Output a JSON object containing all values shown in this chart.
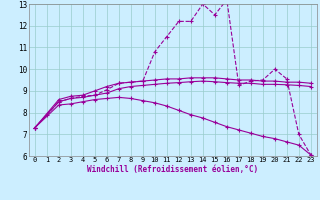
{
  "bg_color": "#cceeff",
  "line_color": "#990099",
  "grid_color": "#99cccc",
  "xlim": [
    -0.5,
    23.5
  ],
  "ylim": [
    6,
    13
  ],
  "xticks": [
    0,
    1,
    2,
    3,
    4,
    5,
    6,
    7,
    8,
    9,
    10,
    11,
    12,
    13,
    14,
    15,
    16,
    17,
    18,
    19,
    20,
    21,
    22,
    23
  ],
  "yticks": [
    6,
    7,
    8,
    9,
    10,
    11,
    12,
    13
  ],
  "xlabel": "Windchill (Refroidissement éolien,°C)",
  "line1_x": [
    0,
    1,
    2,
    3,
    4,
    5,
    6,
    7,
    8,
    9,
    10,
    11,
    12,
    13,
    14,
    15,
    16,
    17,
    18,
    19,
    20,
    21,
    22,
    23
  ],
  "line1_y": [
    7.3,
    7.9,
    8.5,
    8.65,
    8.75,
    8.8,
    9.05,
    9.35,
    9.4,
    9.45,
    10.8,
    11.5,
    12.2,
    12.2,
    13.0,
    12.5,
    13.2,
    9.25,
    9.45,
    9.5,
    10.0,
    9.55,
    7.0,
    6.05
  ],
  "line2_x": [
    0,
    2,
    3,
    4,
    5,
    6,
    7,
    8,
    9,
    10,
    11,
    12,
    13,
    14,
    15,
    16,
    17,
    18,
    19,
    20,
    21,
    22,
    23
  ],
  "line2_y": [
    7.3,
    8.6,
    8.75,
    8.8,
    9.0,
    9.2,
    9.35,
    9.4,
    9.45,
    9.5,
    9.55,
    9.55,
    9.6,
    9.6,
    9.6,
    9.55,
    9.5,
    9.5,
    9.45,
    9.45,
    9.4,
    9.4,
    9.35
  ],
  "line3_x": [
    0,
    2,
    3,
    4,
    5,
    6,
    7,
    8,
    9,
    10,
    11,
    12,
    13,
    14,
    15,
    16,
    17,
    18,
    19,
    20,
    21,
    22,
    23
  ],
  "line3_y": [
    7.3,
    8.5,
    8.65,
    8.7,
    8.8,
    8.9,
    9.1,
    9.2,
    9.25,
    9.3,
    9.35,
    9.38,
    9.42,
    9.45,
    9.42,
    9.38,
    9.35,
    9.35,
    9.3,
    9.3,
    9.28,
    9.25,
    9.2
  ],
  "line4_x": [
    0,
    2,
    3,
    4,
    5,
    6,
    7,
    8,
    9,
    10,
    11,
    12,
    13,
    14,
    15,
    16,
    17,
    18,
    19,
    20,
    21,
    22,
    23
  ],
  "line4_y": [
    7.3,
    8.35,
    8.4,
    8.5,
    8.6,
    8.65,
    8.7,
    8.65,
    8.55,
    8.45,
    8.3,
    8.1,
    7.9,
    7.75,
    7.55,
    7.35,
    7.2,
    7.05,
    6.9,
    6.8,
    6.65,
    6.5,
    6.05
  ]
}
